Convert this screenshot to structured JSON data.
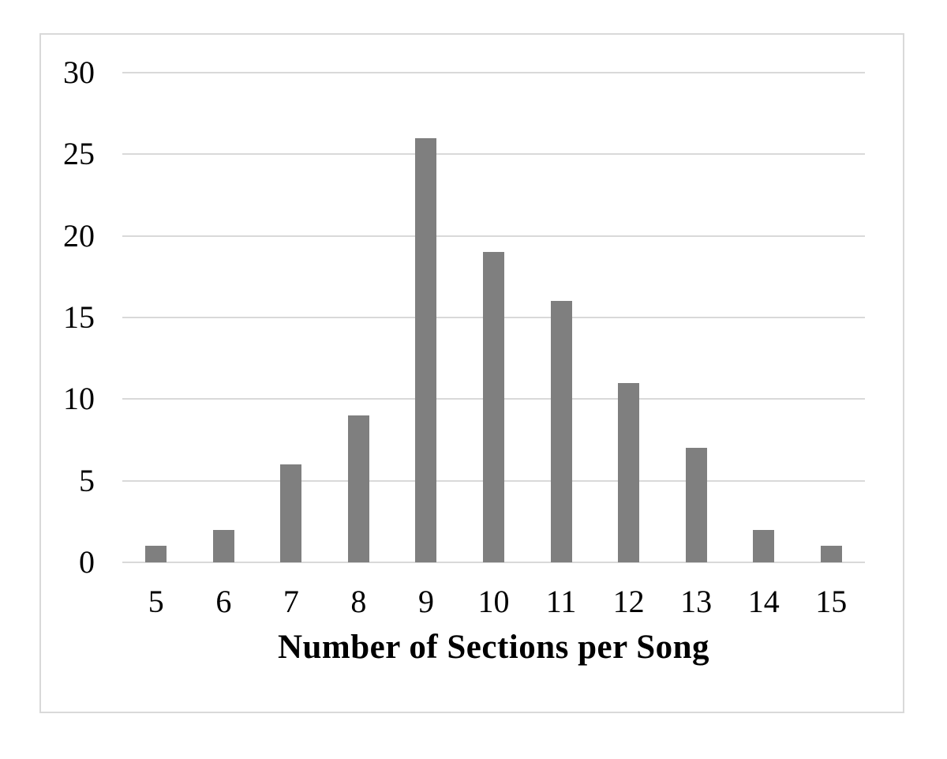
{
  "chart_data": {
    "type": "bar",
    "categories": [
      "5",
      "6",
      "7",
      "8",
      "9",
      "10",
      "11",
      "12",
      "13",
      "14",
      "15"
    ],
    "values": [
      1,
      2,
      6,
      9,
      26,
      19,
      16,
      11,
      7,
      2,
      1
    ],
    "xlabel": "Number of Sections per Song",
    "ylim": [
      0,
      30
    ],
    "yticks": [
      0,
      5,
      10,
      15,
      20,
      25,
      30
    ],
    "grid": true,
    "legend": "none",
    "bar_color": "#7f7f7f",
    "gridline_color": "#d9d9d9",
    "frame_border_color": "#d9d9d9",
    "text_color": "#000000"
  }
}
